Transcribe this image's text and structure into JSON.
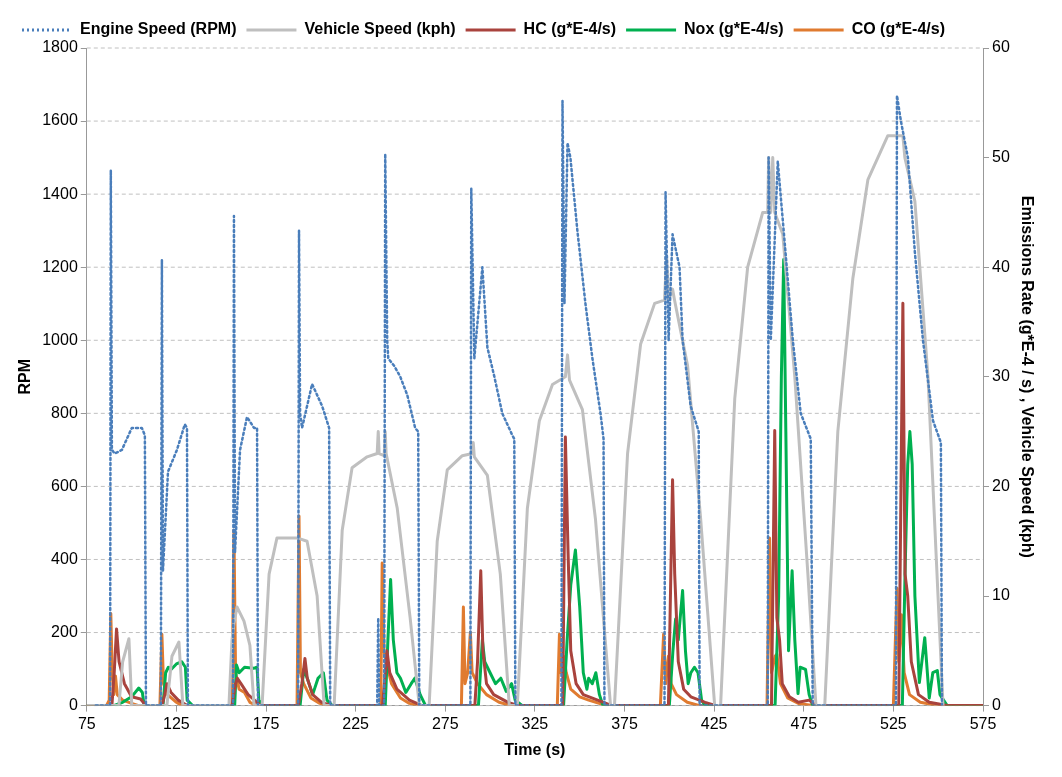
{
  "chart_data": {
    "type": "line",
    "xlabel": "Time (s)",
    "ylabel": "RPM",
    "y2label": "Emissions Rate (g*E-4 / s) , Vehicle Speed (kph)",
    "xlim": [
      75,
      575
    ],
    "xticks": [
      75,
      125,
      175,
      225,
      275,
      325,
      375,
      425,
      475,
      525,
      575
    ],
    "ylim": [
      0,
      1800
    ],
    "yticks": [
      0,
      200,
      400,
      600,
      800,
      1000,
      1200,
      1400,
      1600,
      1800
    ],
    "y2lim": [
      0,
      60
    ],
    "y2ticks": [
      0,
      10,
      20,
      30,
      40,
      50,
      60
    ],
    "grid": "y",
    "legend": "top left",
    "marker": "none",
    "series": [
      {
        "name": "Engine Speed (RPM)",
        "color": "#4a7ebb",
        "axis": "y",
        "line_style": "dotted",
        "x": [
          80,
          88,
          88.4,
          89,
          90.6,
          94.6,
          100.1,
          105.7,
          107.4,
          108,
          116.3,
          116.9,
          117.5,
          120.3,
          125.3,
          129.7,
          130.9,
          131.4,
          156.6,
          157.1,
          157.7,
          160.5,
          164.4,
          168.3,
          170,
          170.5,
          192.9,
          193.4,
          194,
          195.1,
          200.7,
          206.3,
          210.2,
          210.8,
          237,
          237.6,
          238.1,
          240.9,
          241.5,
          242.6,
          243.2,
          246.5,
          249.9,
          253.8,
          258.2,
          259.9,
          260.5,
          289,
          289.5,
          291.2,
          295.7,
          298.5,
          302.4,
          306.8,
          312.4,
          313.5,
          314.1,
          339.8,
          340.4,
          341.5,
          343.2,
          344.8,
          348.7,
          353.2,
          357.1,
          361.6,
          363.3,
          363.8,
          397.3,
          397.9,
          399.6,
          401.8,
          405.7,
          407.4,
          411.9,
          416.4,
          416.9,
          454.9,
          455.4,
          456.6,
          460.5,
          465,
          468.9,
          473.3,
          478.9,
          480,
          526.4,
          527,
          529.2,
          533.1,
          537,
          541.5,
          547.1,
          551.5,
          552.1
        ],
        "values": [
          0,
          0,
          1465,
          700,
          690,
          700,
          760,
          760,
          740,
          0,
          0,
          1220,
          370,
          640,
          700,
          770,
          760,
          0,
          0,
          1340,
          420,
          700,
          790,
          760,
          760,
          0,
          0,
          1300,
          800,
          760,
          880,
          820,
          760,
          0,
          0,
          240,
          0,
          0,
          1510,
          1000,
          950,
          930,
          900,
          850,
          760,
          750,
          0,
          0,
          1415,
          950,
          1200,
          980,
          900,
          800,
          740,
          730,
          0,
          0,
          1655,
          1100,
          1540,
          1500,
          1300,
          1100,
          950,
          800,
          730,
          0,
          0,
          1405,
          1000,
          1290,
          1200,
          1000,
          820,
          750,
          0,
          0,
          1500,
          1000,
          1490,
          1230,
          1000,
          800,
          730,
          0,
          0,
          1670,
          1600,
          1500,
          1240,
          1000,
          780,
          720,
          0
        ]
      },
      {
        "name": "Vehicle Speed (kph)",
        "color": "#bfbfbf",
        "axis": "y2",
        "line_style": "solid",
        "x": [
          75,
          92.9,
          95,
          98.5,
          100.1,
          119.7,
          122.5,
          126.4,
          128.6,
          154.3,
          156,
          157.1,
          158.8,
          162.7,
          166,
          168.3,
          172.8,
          176.7,
          181.1,
          192.3,
          197.9,
          203.5,
          207.4,
          213,
          217.5,
          223,
          231.4,
          237,
          237.6,
          238.1,
          240.9,
          241.5,
          242,
          248.2,
          255.4,
          260.5,
          266,
          270.5,
          276.1,
          284.5,
          290.1,
          290.6,
          291.2,
          298.5,
          305.7,
          310.7,
          315.2,
          320.8,
          327.5,
          334.8,
          342,
          343.2,
          344.3,
          351.5,
          358.8,
          367.2,
          369.4,
          376.7,
          384,
          391.8,
          397.3,
          398.5,
          399.6,
          401.8,
          402.9,
          410.2,
          417.5,
          425.3,
          428.6,
          436.5,
          443.7,
          452.1,
          454.9,
          455.4,
          456.6,
          457.7,
          458.8,
          463.3,
          470,
          477.3,
          481.8,
          486.7,
          494,
          502.4,
          510.8,
          521.9,
          530.3,
          531.4,
          537,
          544.3,
          552.7
        ],
        "values": [
          0,
          0,
          4,
          6.1,
          0,
          0,
          4.5,
          5.8,
          0,
          0,
          6,
          7.5,
          9,
          7.7,
          5.5,
          0,
          0,
          12,
          15.3,
          15.3,
          15,
          10,
          0,
          0,
          16,
          21.7,
          22.7,
          23,
          25,
          23,
          22.8,
          25,
          23,
          18,
          8,
          0,
          0,
          15,
          21.5,
          22.8,
          23,
          24,
          22.7,
          21,
          12,
          0,
          0,
          18,
          26,
          29.3,
          30,
          32,
          29.7,
          27,
          17,
          0,
          0,
          23,
          33,
          36.7,
          37,
          41,
          37,
          38,
          37,
          31,
          17,
          0,
          0,
          28,
          40,
          45,
          45,
          50,
          45,
          50,
          45,
          43,
          30,
          12,
          0,
          0,
          25,
          39,
          48,
          52,
          52,
          50,
          46,
          30,
          0
        ]
      },
      {
        "name": "HC (g*E-4/s)",
        "color": "#a9433d",
        "axis": "y2",
        "line_style": "solid",
        "x": [
          75,
          89,
          90.3,
          91.6,
          93,
          96,
          100,
          105,
          108,
          117,
          118.5,
          119.7,
          122,
          126,
          131,
          156,
          158,
          159,
          161,
          165,
          170,
          172,
          193,
          195,
          196.7,
          198,
          201,
          206,
          212,
          240,
          242.5,
          244,
          248,
          255,
          262,
          291.5,
          293,
          294.8,
          296,
          298,
          302,
          310,
          316,
          340.5,
          342,
          343.5,
          345,
          348,
          352,
          360,
          368,
          399.5,
          401.8,
          403,
          405,
          408,
          412,
          420,
          426,
          457,
          458.8,
          460,
          461.5,
          463,
          467,
          472,
          478,
          482,
          528,
          530.3,
          531.5,
          533,
          535,
          539,
          545,
          555,
          575
        ],
        "values": [
          0,
          0,
          3,
          7,
          4,
          2,
          0.8,
          0.6,
          0,
          0,
          1,
          2,
          1.2,
          0.5,
          0,
          0,
          2,
          2.5,
          2,
          1,
          0.3,
          0,
          0,
          2,
          4.3,
          2.5,
          1,
          0.3,
          0,
          0,
          5,
          3,
          1.5,
          0.5,
          0,
          0,
          4,
          12.3,
          5,
          2,
          1,
          0.3,
          0,
          0,
          24.5,
          14,
          5,
          2,
          1,
          0.5,
          0,
          0,
          20.6,
          12,
          4,
          1.5,
          0.8,
          0.3,
          0,
          0,
          25.1,
          8,
          6,
          2,
          0.8,
          0.3,
          0.5,
          0,
          0,
          36.7,
          12,
          10,
          4,
          1,
          0.3,
          0,
          0
        ]
      },
      {
        "name": "Nox (g*E-4/s)",
        "color": "#00b050",
        "axis": "y2",
        "line_style": "solid",
        "x": [
          75,
          90,
          95,
          100,
          104,
          106,
          107,
          117.5,
          119,
          120.5,
          122,
          125,
          128,
          130,
          131,
          134,
          157.5,
          158.5,
          160,
          163,
          168,
          170,
          171,
          173,
          194,
          196,
          198,
          201,
          204,
          207,
          209,
          212,
          241.5,
          243,
          244.5,
          246,
          248,
          250,
          253,
          256,
          258,
          261,
          264,
          293.5,
          295.7,
          297,
          300,
          303,
          306,
          309,
          312,
          314,
          318,
          341,
          343,
          345,
          347.6,
          350,
          352,
          354,
          355,
          357,
          359,
          361,
          363,
          400,
          402,
          403.5,
          405,
          407.4,
          409,
          410.5,
          412,
          414,
          416,
          418,
          420,
          459,
          461,
          462.5,
          463.8,
          465,
          466.5,
          468.5,
          470,
          471.8,
          473,
          476,
          478,
          480,
          530,
          531.5,
          533,
          534.2,
          535.5,
          537,
          539.5,
          542.5,
          545,
          547,
          549.5,
          551,
          555,
          575
        ],
        "values": [
          0,
          0,
          0.3,
          0.8,
          1.6,
          1.2,
          0,
          0,
          3,
          3.5,
          3.3,
          3.8,
          4,
          3.5,
          0.5,
          0,
          0,
          3.7,
          3,
          3.5,
          3.4,
          3.5,
          0.5,
          0,
          0,
          3.3,
          2.5,
          1,
          2.5,
          3,
          0.5,
          0,
          0,
          6,
          11.5,
          6,
          3,
          2.5,
          1.2,
          2,
          2.5,
          1,
          0,
          0,
          6,
          4,
          3,
          2,
          2.5,
          1.3,
          2,
          0.5,
          0,
          0,
          6,
          11,
          14.2,
          9,
          3,
          1.5,
          2.5,
          2,
          3,
          1,
          0,
          0,
          5,
          7.9,
          6,
          10.5,
          5,
          2,
          3,
          3.5,
          3,
          0.5,
          0,
          0,
          10,
          30,
          40.7,
          25,
          5,
          12.3,
          6,
          1.1,
          3.5,
          3.3,
          1,
          0,
          0,
          12,
          22,
          25,
          22,
          10,
          2.1,
          6.2,
          0.7,
          3,
          3.2,
          1,
          0,
          0
        ]
      },
      {
        "name": "CO (g*E-4/s)",
        "color": "#e07b30",
        "axis": "y2",
        "line_style": "solid",
        "x": [
          75,
          86,
          87.5,
          88.4,
          89.2,
          90,
          91,
          92,
          95,
          100,
          104,
          115.8,
          116.9,
          117.8,
          120,
          125,
          128,
          156,
          157.1,
          158,
          160,
          163,
          166,
          170,
          192.3,
          193.4,
          194.2,
          196,
          200,
          205,
          210,
          239,
          239.8,
          240.8,
          242,
          245,
          250,
          255,
          260,
          284,
          285.1,
          286,
          287.5,
          289,
          290,
          293,
          298,
          305,
          312,
          337.5,
          338.7,
          339.5,
          341,
          342.5,
          345,
          350,
          355,
          365,
          395,
          396.8,
          398,
          399.5,
          401,
          404,
          410,
          417,
          454.5,
          455.9,
          457,
          459,
          460,
          462,
          466,
          472,
          480,
          525,
          527,
          528,
          529.5,
          531,
          534,
          540,
          550,
          575
        ],
        "values": [
          0,
          0,
          0.5,
          8.4,
          3,
          1,
          2.7,
          1,
          0.5,
          0.2,
          0,
          0,
          6.5,
          2,
          1,
          0.3,
          0,
          0,
          16,
          3,
          1.5,
          1.2,
          0.3,
          0,
          0,
          17.3,
          3,
          2,
          0.7,
          0.2,
          0,
          0,
          13,
          5,
          4,
          2,
          0.7,
          0.2,
          0,
          0,
          9,
          2,
          3,
          6.7,
          3,
          2,
          1,
          0.3,
          0,
          0,
          6.5,
          3,
          4.5,
          3,
          1.5,
          0.8,
          0.5,
          0,
          0,
          6.5,
          2,
          4.5,
          2,
          1,
          0.3,
          0,
          0,
          15.3,
          3,
          4.5,
          4.7,
          2,
          0.7,
          0.2,
          0,
          0,
          10.7,
          4,
          8.3,
          3,
          1,
          0.3,
          0,
          0
        ]
      }
    ]
  }
}
